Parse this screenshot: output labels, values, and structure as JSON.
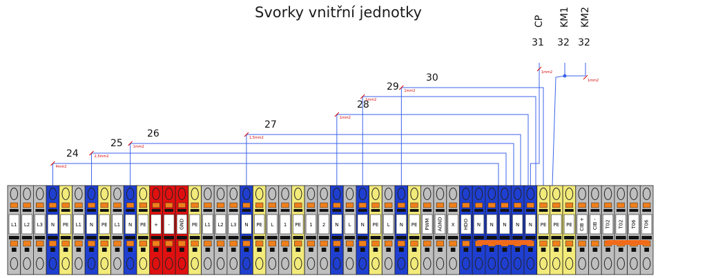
{
  "title": "Svorky vnitřní jednotky",
  "colors": {
    "gray": "#bfbfbf",
    "blue": "#1f3fd0",
    "yellow": "#f2ea7a",
    "red": "#e01010",
    "wire": "#3a62e8",
    "annotation": "#d40000",
    "bridge": "#f06a1a"
  },
  "terminals": [
    {
      "label": "L1",
      "color": "gray"
    },
    {
      "label": "L2",
      "color": "gray"
    },
    {
      "label": "L3",
      "color": "gray"
    },
    {
      "label": "N",
      "color": "blue"
    },
    {
      "label": "PE",
      "color": "yellow"
    },
    {
      "label": "L1",
      "color": "gray"
    },
    {
      "label": "N",
      "color": "blue"
    },
    {
      "label": "PE",
      "color": "yellow"
    },
    {
      "label": "L1",
      "color": "gray"
    },
    {
      "label": "N",
      "color": "blue"
    },
    {
      "label": "PE",
      "color": "yellow"
    },
    {
      "label": "+",
      "color": "red"
    },
    {
      "label": "-",
      "color": "red"
    },
    {
      "label": "GND",
      "color": "red"
    },
    {
      "label": "PE",
      "color": "yellow"
    },
    {
      "label": "L1",
      "color": "gray"
    },
    {
      "label": "L2",
      "color": "gray"
    },
    {
      "label": "L3",
      "color": "gray"
    },
    {
      "label": "N",
      "color": "blue"
    },
    {
      "label": "PE",
      "color": "yellow"
    },
    {
      "label": "L",
      "color": "gray"
    },
    {
      "label": "1",
      "color": "gray"
    },
    {
      "label": "PE",
      "color": "yellow"
    },
    {
      "label": "1",
      "color": "gray"
    },
    {
      "label": "2",
      "color": "gray"
    },
    {
      "label": "N",
      "color": "blue"
    },
    {
      "label": "L",
      "color": "gray"
    },
    {
      "label": "N",
      "color": "blue"
    },
    {
      "label": "PE",
      "color": "yellow"
    },
    {
      "label": "L",
      "color": "gray"
    },
    {
      "label": "N",
      "color": "blue"
    },
    {
      "label": "PE",
      "color": "yellow"
    },
    {
      "label": "PWM",
      "color": "gray"
    },
    {
      "label": "AGND",
      "color": "gray"
    },
    {
      "label": "X",
      "color": "gray"
    },
    {
      "label": "HDO",
      "color": "blue"
    },
    {
      "label": "N",
      "color": "blue"
    },
    {
      "label": "N",
      "color": "blue"
    },
    {
      "label": "N",
      "color": "blue"
    },
    {
      "label": "N",
      "color": "blue"
    },
    {
      "label": "N",
      "color": "blue"
    },
    {
      "label": "PE",
      "color": "yellow"
    },
    {
      "label": "PE",
      "color": "yellow"
    },
    {
      "label": "PE",
      "color": "yellow"
    },
    {
      "label": "CIB +",
      "color": "gray"
    },
    {
      "label": "CIB -",
      "color": "gray"
    },
    {
      "label": "T02",
      "color": "gray"
    },
    {
      "label": "T02",
      "color": "gray"
    },
    {
      "label": "T06",
      "color": "gray"
    },
    {
      "label": "T06",
      "color": "gray"
    }
  ],
  "circuits": [
    {
      "number": "24",
      "size": "4mm2",
      "terminal": 3
    },
    {
      "number": "25",
      "size": "2,5mm2",
      "terminal": 6
    },
    {
      "number": "26",
      "size": "1mm2",
      "terminal": 9
    },
    {
      "number": "27",
      "size": "1,5mm2",
      "terminal": 18
    },
    {
      "number": "28",
      "size": "1mm2",
      "terminal": 25
    },
    {
      "number": "29",
      "size": "1mm2",
      "terminal": 27
    },
    {
      "number": "30",
      "size": "1mm2",
      "terminal": 30
    }
  ],
  "outputs": [
    {
      "name": "CP",
      "number": "31",
      "size": "1mm2"
    },
    {
      "name": "KM1",
      "number": "32",
      "size": ""
    },
    {
      "name": "KM2",
      "number": "32",
      "size": "1mm2"
    }
  ]
}
